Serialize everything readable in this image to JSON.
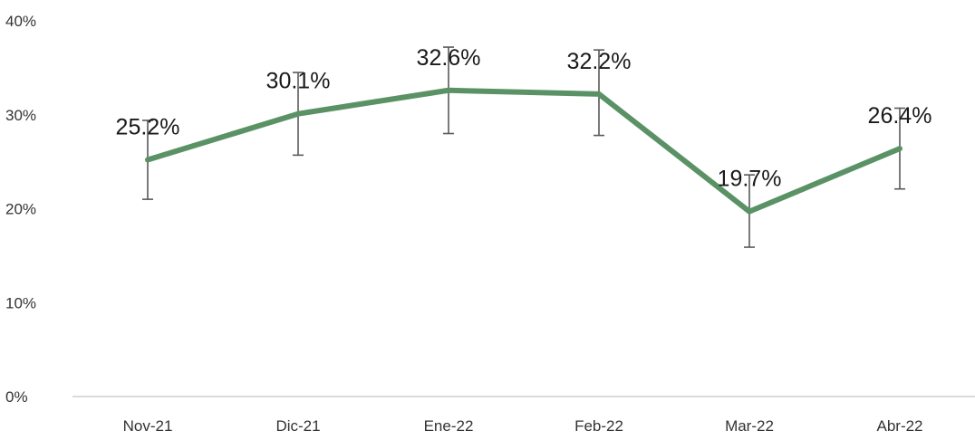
{
  "chart_data": {
    "type": "line",
    "title": "",
    "xlabel": "",
    "ylabel": "",
    "categories": [
      "Nov-21",
      "Dic-21",
      "Ene-22",
      "Feb-22",
      "Mar-22",
      "Abr-22"
    ],
    "series": [
      {
        "values": [
          25.2,
          30.1,
          32.6,
          32.2,
          19.7,
          26.4
        ],
        "data_labels": [
          "25.2%",
          "30.1%",
          "32.6%",
          "32.2%",
          "19.7%",
          "26.4%"
        ],
        "error_low": [
          21.0,
          25.7,
          28.0,
          27.8,
          15.9,
          22.1
        ],
        "error_high": [
          29.4,
          34.5,
          37.2,
          36.9,
          23.6,
          30.7
        ],
        "color": "#5b9265"
      }
    ],
    "ylim": [
      0,
      40
    ],
    "yticks": [
      0,
      10,
      20,
      30,
      40
    ],
    "ytick_labels": [
      "0%",
      "10%",
      "20%",
      "30%",
      "40%"
    ],
    "grid": false,
    "legend": "none",
    "error_bar_color": "#595959",
    "axis_color": "#cfcfcf"
  }
}
